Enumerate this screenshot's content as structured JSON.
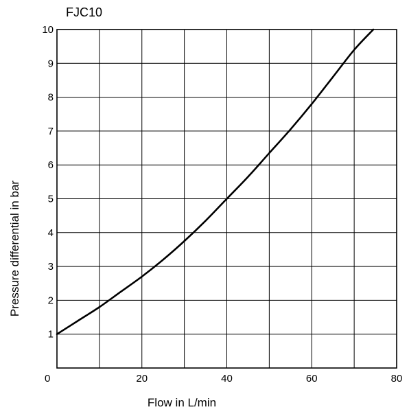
{
  "chart_data": {
    "type": "line",
    "title": "FJC10",
    "xlabel": "Flow in L/min",
    "ylabel": "Pressure differential in bar",
    "xlim": [
      0,
      80
    ],
    "ylim": [
      0,
      10
    ],
    "xticks": [
      0,
      20,
      40,
      60,
      80
    ],
    "yticks": [
      1,
      2,
      3,
      4,
      5,
      6,
      7,
      8,
      9,
      10
    ],
    "grid": true,
    "series": [
      {
        "x": [
          0,
          5,
          10,
          15,
          20,
          25,
          30,
          35,
          40,
          45,
          50,
          55,
          60,
          65,
          70,
          74.5
        ],
        "y": [
          1.0,
          1.4,
          1.8,
          2.25,
          2.7,
          3.2,
          3.75,
          4.35,
          5.0,
          5.65,
          6.35,
          7.05,
          7.8,
          8.6,
          9.4,
          10.0
        ]
      }
    ]
  }
}
